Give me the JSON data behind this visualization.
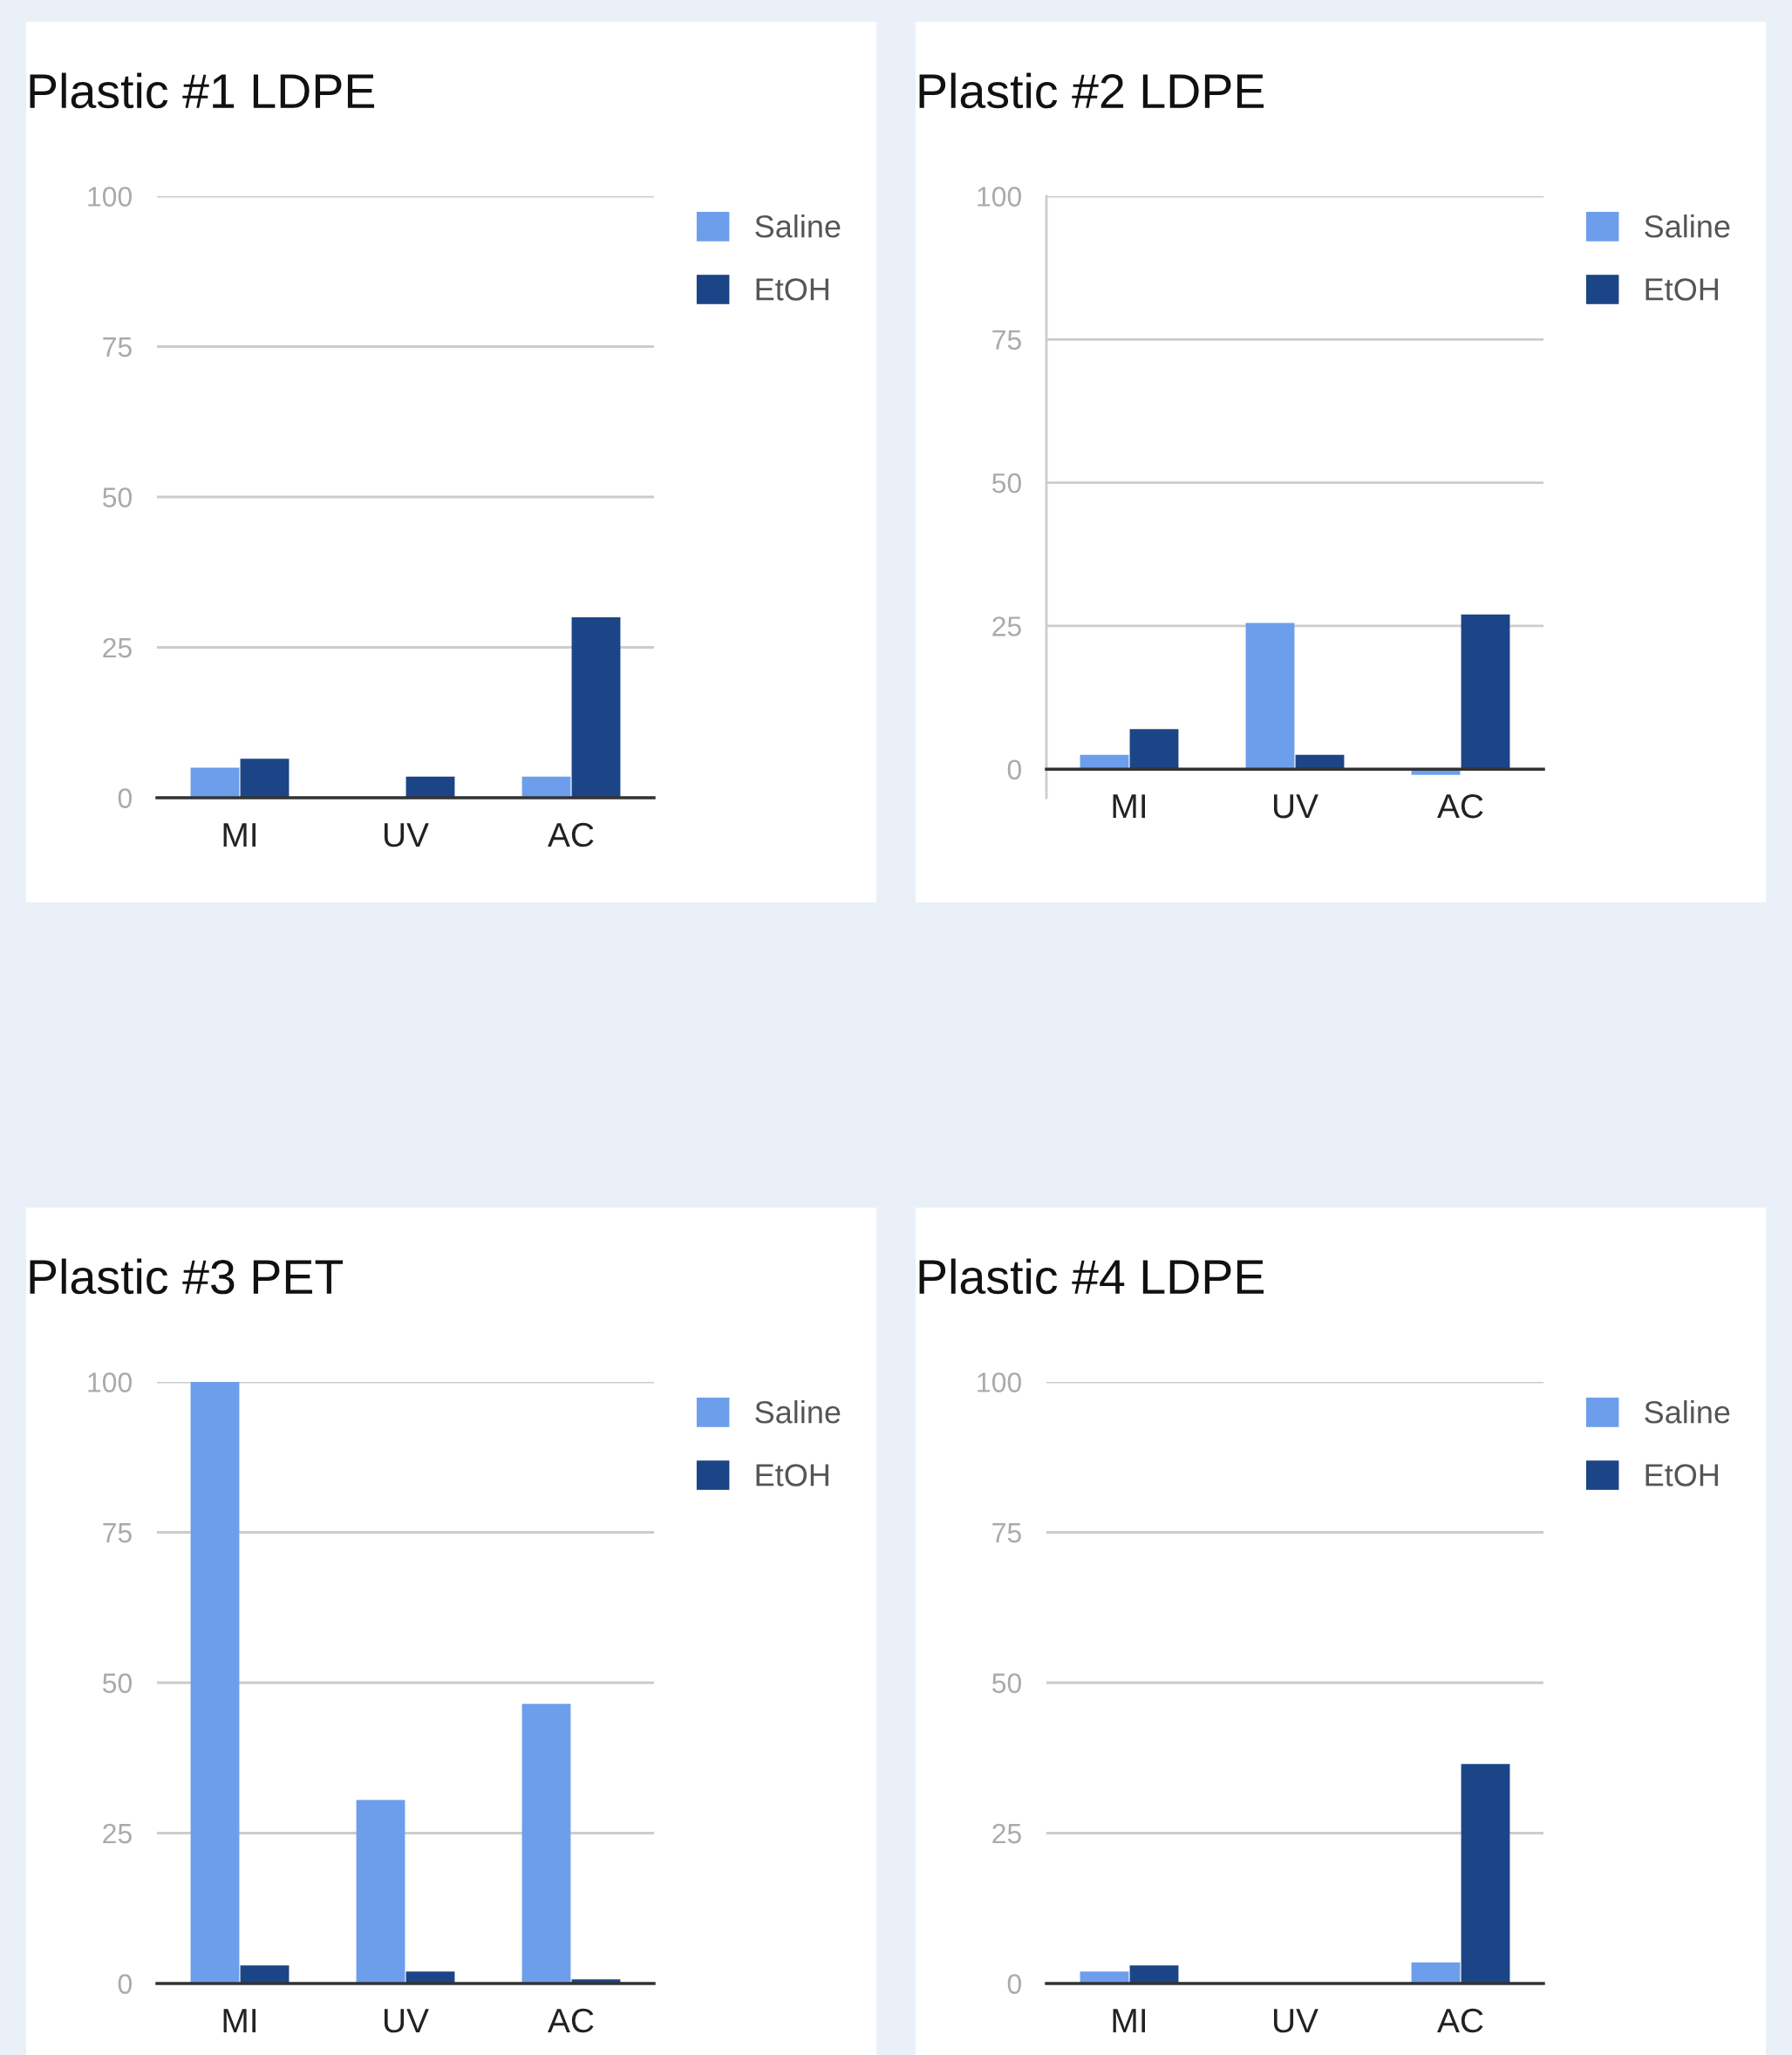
{
  "chart_data": [
    {
      "type": "bar",
      "title": "Plastic #1 LDPE",
      "categories": [
        "MI",
        "UV",
        "AC"
      ],
      "ylim": [
        0,
        100
      ],
      "yticks": [
        0,
        25,
        50,
        75,
        100
      ],
      "grid": "y",
      "legend": "right",
      "series": [
        {
          "name": "Saline",
          "color": "#6d9eeb",
          "values": [
            5,
            0,
            3.5
          ]
        },
        {
          "name": "EtOH",
          "color": "#1c4587",
          "values": [
            6.5,
            3.5,
            30
          ]
        }
      ]
    },
    {
      "type": "bar",
      "title": "Plastic #2 LDPE",
      "categories": [
        "MI",
        "UV",
        "AC"
      ],
      "ylim": [
        -5,
        100
      ],
      "yticks": [
        0,
        25,
        50,
        75,
        100
      ],
      "grid": "y",
      "legend": "right",
      "series": [
        {
          "name": "Saline",
          "color": "#6d9eeb",
          "values": [
            2.5,
            25.5,
            -1
          ]
        },
        {
          "name": "EtOH",
          "color": "#1c4587",
          "values": [
            7,
            2.5,
            27
          ]
        }
      ]
    },
    {
      "type": "bar",
      "title": "Plastic #3 PET",
      "categories": [
        "MI",
        "UV",
        "AC"
      ],
      "ylim": [
        0,
        100
      ],
      "yticks": [
        0,
        25,
        50,
        75,
        100
      ],
      "grid": "y",
      "legend": "right",
      "series": [
        {
          "name": "Saline",
          "color": "#6d9eeb",
          "values": [
            100,
            30.5,
            46.5
          ]
        },
        {
          "name": "EtOH",
          "color": "#1c4587",
          "values": [
            3,
            2,
            0.7
          ]
        }
      ]
    },
    {
      "type": "bar",
      "title": "Plastic #4 LDPE",
      "categories": [
        "MI",
        "UV",
        "AC"
      ],
      "ylim": [
        0,
        100
      ],
      "yticks": [
        0,
        25,
        50,
        75,
        100
      ],
      "grid": "y",
      "legend": "right",
      "series": [
        {
          "name": "Saline",
          "color": "#6d9eeb",
          "values": [
            2,
            0,
            3.5
          ]
        },
        {
          "name": "EtOH",
          "color": "#1c4587",
          "values": [
            3,
            0,
            36.5
          ]
        }
      ]
    }
  ]
}
